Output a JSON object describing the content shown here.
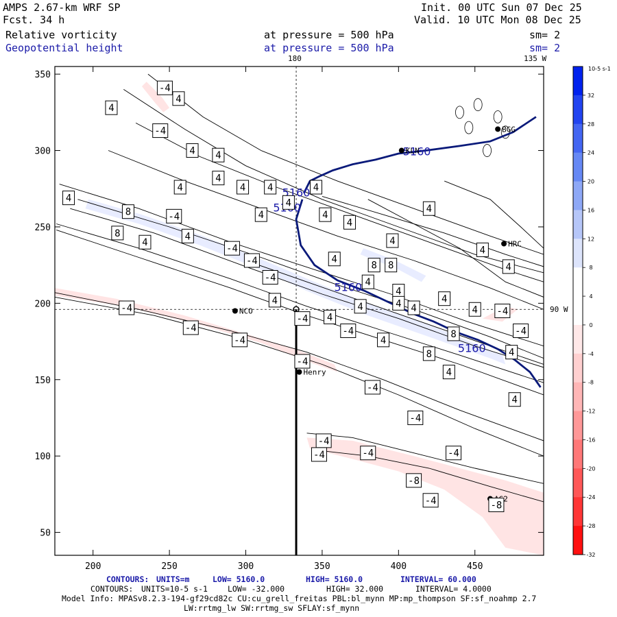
{
  "header": {
    "model": "AMPS 2.67-km WRF SP",
    "fcst": "Fcst.    34 h",
    "init": "Init. 00 UTC Sun 07 Dec 25",
    "valid": "Valid. 10 UTC Mon 08 Dec 25",
    "field1": {
      "name": "Relative vorticity",
      "pressure": "at pressure =  500 hPa",
      "smooth": "sm= 2"
    },
    "field2": {
      "name": "Geopotential height",
      "pressure": "at pressure =  500 hPa",
      "smooth": "sm= 2"
    }
  },
  "colors": {
    "height_contour": "#0a1a7a",
    "field2_text": "#1a1aa8",
    "positive_fill": "#e8ecff",
    "negative_fill": "#ffe4e4"
  },
  "map_labels": {
    "lon_180": "180",
    "lon_135w": "135 W",
    "lon_90w": "90 W"
  },
  "stations": [
    {
      "name": "NCO",
      "x": 293,
      "y": 195
    },
    {
      "name": "Henry",
      "x": 335,
      "y": 155
    },
    {
      "name": "KLN",
      "x": 402,
      "y": 300
    },
    {
      "name": "HRC",
      "x": 469,
      "y": 239
    },
    {
      "name": "BGG",
      "x": 465,
      "y": 314
    },
    {
      "name": "AG2",
      "x": 460,
      "y": 72
    }
  ],
  "chart_data": {
    "type": "contour",
    "xlim": [
      175,
      495
    ],
    "ylim": [
      35,
      355
    ],
    "xticks": [
      200,
      250,
      300,
      350,
      400,
      450
    ],
    "yticks": [
      50,
      100,
      150,
      200,
      250,
      300,
      350
    ],
    "crosshair": {
      "x": 333,
      "y": 196
    },
    "cross_section_line": {
      "x": 333,
      "y_from": 196,
      "y_to": 35
    },
    "height_contour": {
      "value_label": "5160",
      "points": [
        [
          338,
          272
        ],
        [
          342,
          280
        ],
        [
          348,
          283
        ],
        [
          357,
          287
        ],
        [
          370,
          291
        ],
        [
          385,
          294
        ],
        [
          400,
          298
        ],
        [
          418,
          300
        ],
        [
          440,
          303
        ],
        [
          460,
          306
        ],
        [
          475,
          312
        ],
        [
          490,
          322
        ]
      ],
      "points_south": [
        [
          337,
          268
        ],
        [
          333,
          255
        ],
        [
          336,
          238
        ],
        [
          345,
          225
        ],
        [
          360,
          215
        ],
        [
          378,
          208
        ],
        [
          395,
          200
        ],
        [
          410,
          193
        ],
        [
          423,
          188
        ],
        [
          438,
          181
        ],
        [
          452,
          176
        ],
        [
          465,
          170
        ],
        [
          476,
          163
        ],
        [
          486,
          155
        ],
        [
          493,
          145
        ]
      ]
    },
    "vorticity_labels": [
      {
        "v": "-4",
        "x": 247,
        "y": 341
      },
      {
        "v": "4",
        "x": 256,
        "y": 334
      },
      {
        "v": "4",
        "x": 212,
        "y": 328
      },
      {
        "v": "-4",
        "x": 244,
        "y": 313
      },
      {
        "v": "4",
        "x": 265,
        "y": 300
      },
      {
        "v": "4",
        "x": 282,
        "y": 297
      },
      {
        "v": "4",
        "x": 282,
        "y": 282
      },
      {
        "v": "4",
        "x": 257,
        "y": 276
      },
      {
        "v": "4",
        "x": 298,
        "y": 276
      },
      {
        "v": "4",
        "x": 316,
        "y": 276
      },
      {
        "v": "4",
        "x": 184,
        "y": 269
      },
      {
        "v": "4",
        "x": 328,
        "y": 266
      },
      {
        "v": "4",
        "x": 346,
        "y": 276
      },
      {
        "v": "8",
        "x": 223,
        "y": 260
      },
      {
        "v": "-4",
        "x": 253,
        "y": 257
      },
      {
        "v": "4",
        "x": 310,
        "y": 258
      },
      {
        "v": "8",
        "x": 216,
        "y": 246
      },
      {
        "v": "4",
        "x": 234,
        "y": 240
      },
      {
        "v": "4",
        "x": 262,
        "y": 244
      },
      {
        "v": "-4",
        "x": 291,
        "y": 236
      },
      {
        "v": "-4",
        "x": 304,
        "y": 228
      },
      {
        "v": "4",
        "x": 420,
        "y": 262
      },
      {
        "v": "4",
        "x": 352,
        "y": 258
      },
      {
        "v": "4",
        "x": 368,
        "y": 253
      },
      {
        "v": "4",
        "x": 396,
        "y": 241
      },
      {
        "v": "4",
        "x": 455,
        "y": 235
      },
      {
        "v": "4",
        "x": 358,
        "y": 229
      },
      {
        "v": "8",
        "x": 384,
        "y": 225
      },
      {
        "v": "8",
        "x": 395,
        "y": 225
      },
      {
        "v": "4",
        "x": 472,
        "y": 224
      },
      {
        "v": "-4",
        "x": 316,
        "y": 217
      },
      {
        "v": "4",
        "x": 380,
        "y": 214
      },
      {
        "v": "4",
        "x": 400,
        "y": 208
      },
      {
        "v": "4",
        "x": 430,
        "y": 203
      },
      {
        "v": "4",
        "x": 319,
        "y": 202
      },
      {
        "v": "4",
        "x": 375,
        "y": 198
      },
      {
        "v": "4",
        "x": 400,
        "y": 200
      },
      {
        "v": "4",
        "x": 410,
        "y": 197
      },
      {
        "v": "4",
        "x": 450,
        "y": 196
      },
      {
        "v": "-4",
        "x": 468,
        "y": 195
      },
      {
        "v": "-4",
        "x": 222,
        "y": 197
      },
      {
        "v": "-4",
        "x": 337,
        "y": 190
      },
      {
        "v": "-4",
        "x": 264,
        "y": 184
      },
      {
        "v": "4",
        "x": 355,
        "y": 191
      },
      {
        "v": "-4",
        "x": 367,
        "y": 182
      },
      {
        "v": "4",
        "x": 390,
        "y": 176
      },
      {
        "v": "8",
        "x": 436,
        "y": 180
      },
      {
        "v": "-4",
        "x": 480,
        "y": 182
      },
      {
        "v": "-4",
        "x": 296,
        "y": 176
      },
      {
        "v": "8",
        "x": 420,
        "y": 167
      },
      {
        "v": "4",
        "x": 474,
        "y": 168
      },
      {
        "v": "-4",
        "x": 337,
        "y": 162
      },
      {
        "v": "4",
        "x": 433,
        "y": 155
      },
      {
        "v": "-4",
        "x": 383,
        "y": 145
      },
      {
        "v": "4",
        "x": 476,
        "y": 137
      },
      {
        "v": "-4",
        "x": 411,
        "y": 125
      },
      {
        "v": "-4",
        "x": 351,
        "y": 110
      },
      {
        "v": "-4",
        "x": 380,
        "y": 102
      },
      {
        "v": "-4",
        "x": 348,
        "y": 101
      },
      {
        "v": "-4",
        "x": 436,
        "y": 102
      },
      {
        "v": "-8",
        "x": 410,
        "y": 84
      },
      {
        "v": "-4",
        "x": 421,
        "y": 71
      },
      {
        "v": "-8",
        "x": 464,
        "y": 68
      }
    ],
    "height_labels": [
      {
        "v": "5160",
        "x": 412,
        "y": 299
      },
      {
        "v": "5160",
        "x": 333,
        "y": 272
      },
      {
        "v": "5160",
        "x": 327,
        "y": 262
      },
      {
        "v": "5160",
        "x": 367,
        "y": 210
      },
      {
        "v": "5160",
        "x": 448,
        "y": 170
      }
    ],
    "colorbar": {
      "unit": "10-5 s-1",
      "ticks": [
        "32",
        "28",
        "24",
        "20",
        "16",
        "12",
        "8",
        "4",
        "0",
        "-4",
        "-8",
        "-12",
        "-16",
        "-20",
        "-24",
        "-28",
        "-32"
      ],
      "colors": [
        "#0022ee",
        "#2244f0",
        "#4466f2",
        "#6688f4",
        "#8ea8f6",
        "#b6c6f8",
        "#dde4fb",
        "#ffffff",
        "#ffffff",
        "#ffe8e8",
        "#ffd0d0",
        "#ffb6b6",
        "#ff9898",
        "#ff7878",
        "#ff5858",
        "#ff3636",
        "#ff1010"
      ]
    }
  },
  "footer": {
    "line1": {
      "label": "CONTOURS:",
      "units": "UNITS=m",
      "low": "LOW=  5160.0",
      "high": "HIGH=  5160.0",
      "interval": "INTERVAL=  60.000"
    },
    "line2": {
      "label": "CONTOURS:",
      "units": "UNITS=10-5 s-1",
      "low": "LOW= -32.000",
      "high": "HIGH=  32.000",
      "interval": "INTERVAL=  4.0000"
    },
    "line3": "Model Info: MPASv8.2.3-194-gf29cd82c CU:cu_grell_freitas PBL:bl_mynn MP:mp_thompson SF:sf_noahmp 2.7",
    "line4": "LW:rrtmg_lw SW:rrtmg_sw SFLAY:sf_mynn"
  }
}
